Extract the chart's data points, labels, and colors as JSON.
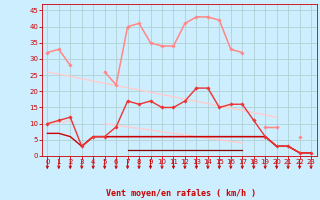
{
  "x": [
    0,
    1,
    2,
    3,
    4,
    5,
    6,
    7,
    8,
    9,
    10,
    11,
    12,
    13,
    14,
    15,
    16,
    17,
    18,
    19,
    20,
    21,
    22,
    23
  ],
  "background_color": "#cceeff",
  "grid_color": "#aacccc",
  "line_color_red": "#cc0000",
  "line_color_darkred": "#880000",
  "line_color_pink": "#ff9999",
  "line_color_lightpink": "#ffbbbb",
  "line_color_medred": "#ee4444",
  "xlabel": "Vent moyen/en rafales ( km/h )",
  "yticks": [
    0,
    5,
    10,
    15,
    20,
    25,
    30,
    35,
    40,
    45
  ],
  "ylim": [
    0,
    47
  ],
  "xlim": [
    -0.5,
    23.5
  ],
  "series": {
    "rafales_light": {
      "color": "#ffbbbb",
      "lw": 1.0,
      "marker": null,
      "ms": 0,
      "y": [
        32,
        33,
        28,
        null,
        null,
        26,
        22,
        40,
        41,
        35,
        34,
        34,
        41,
        43,
        43,
        42,
        33,
        32,
        null,
        9,
        9,
        null,
        6,
        null
      ]
    },
    "rafales_main": {
      "color": "#ff8888",
      "lw": 1.0,
      "marker": "D",
      "ms": 1.8,
      "y": [
        32,
        33,
        28,
        null,
        null,
        26,
        22,
        40,
        41,
        35,
        34,
        34,
        41,
        43,
        43,
        42,
        33,
        32,
        null,
        9,
        9,
        null,
        6,
        null
      ]
    },
    "diagonal_envelope": {
      "color": "#ffcccc",
      "lw": 1.0,
      "marker": null,
      "ms": 0,
      "y": [
        26,
        25.3,
        24.6,
        23.9,
        23.2,
        22.5,
        21.8,
        21.1,
        20.4,
        19.7,
        19.0,
        18.3,
        17.6,
        16.9,
        16.2,
        15.5,
        14.8,
        14.1,
        13.4,
        12.7,
        12.0,
        null,
        null,
        null
      ]
    },
    "vent_moy_main": {
      "color": "#ee3333",
      "lw": 1.0,
      "marker": "D",
      "ms": 1.8,
      "y": [
        10,
        11,
        12,
        3,
        6,
        6,
        9,
        17,
        16,
        17,
        15,
        15,
        17,
        21,
        21,
        15,
        16,
        16,
        11,
        6,
        3,
        3,
        1,
        1
      ]
    },
    "flat_upper": {
      "color": "#cc0000",
      "lw": 1.0,
      "marker": null,
      "ms": 0,
      "y": [
        7,
        7,
        6,
        3,
        6,
        6,
        6,
        6,
        6,
        6,
        6,
        6,
        6,
        6,
        6,
        6,
        6,
        6,
        6,
        6,
        3,
        3,
        1,
        1
      ]
    },
    "flat_mid": {
      "color": "#aa0000",
      "lw": 0.9,
      "marker": null,
      "ms": 0,
      "y": [
        null,
        null,
        null,
        3,
        6,
        6,
        6,
        6,
        6,
        6,
        6,
        6,
        6,
        6,
        6,
        6,
        6,
        6,
        6,
        6,
        3,
        3,
        1,
        1
      ]
    },
    "flat_lower": {
      "color": "#880000",
      "lw": 0.9,
      "marker": null,
      "ms": 0,
      "y": [
        null,
        null,
        null,
        null,
        null,
        null,
        null,
        2,
        2,
        2,
        2,
        2,
        2,
        2,
        2,
        2,
        2,
        2,
        null,
        null,
        null,
        null,
        null,
        null
      ]
    },
    "diagonal_lower": {
      "color": "#ffcccc",
      "lw": 1.0,
      "marker": null,
      "ms": 0,
      "y": [
        10,
        10.4,
        10.8,
        null,
        null,
        10.0,
        9.5,
        9.0,
        8.5,
        8.0,
        7.5,
        7.0,
        6.5,
        6.0,
        5.5,
        5.0,
        4.5,
        4.0,
        null,
        null,
        null,
        null,
        null,
        null
      ]
    }
  }
}
